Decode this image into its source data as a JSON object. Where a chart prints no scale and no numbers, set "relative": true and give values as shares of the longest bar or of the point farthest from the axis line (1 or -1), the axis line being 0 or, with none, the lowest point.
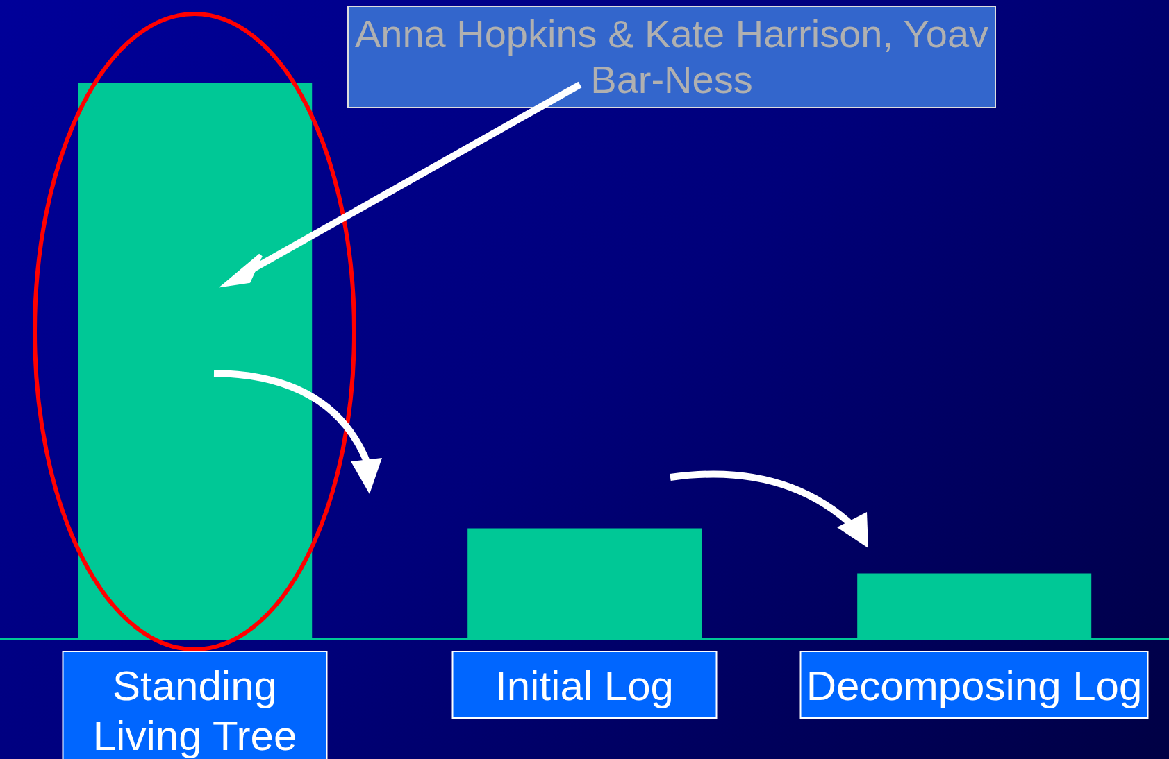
{
  "chart_data": {
    "type": "bar",
    "relative": true,
    "categories": [
      "Standing Living Tree",
      "Initial Log",
      "Decomposing Log"
    ],
    "values": [
      1,
      0.199,
      0.118
    ],
    "color": "#00c896",
    "annotations": [
      "Anna Hopkins & Kate Harrison, Yoav Bar-Ness"
    ]
  }
}
